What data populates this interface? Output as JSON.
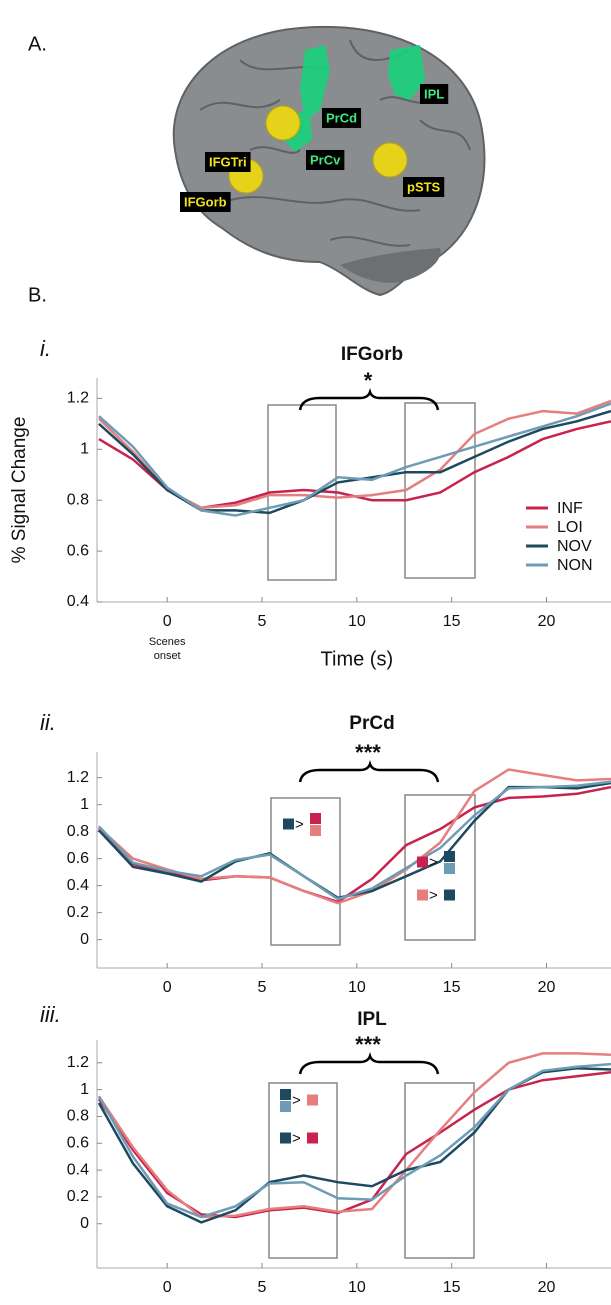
{
  "panel_labels": [
    "A.",
    "B."
  ],
  "brain_labels": [
    "IFGTri",
    "IFGorb",
    "PrCd",
    "PrCv",
    "IPL",
    "pSTS"
  ],
  "chart_data": [
    {
      "type": "line",
      "panel_label": "i.",
      "title": "IFGorb",
      "xlabel": "Time (s)",
      "ylabel": "% Signal Change",
      "x_note": [
        "Scenes",
        "onset"
      ],
      "annotation": "*",
      "legend": "right",
      "x": [
        -3.6,
        -1.8,
        0,
        1.8,
        3.6,
        5.4,
        7.2,
        9,
        10.8,
        12.6,
        14.4,
        16.2,
        18,
        19.8,
        21.6,
        23.4
      ],
      "xlim": [
        -3.7,
        23.4
      ],
      "xticks": [
        0,
        5,
        10,
        15,
        20
      ],
      "ylim": [
        0.4,
        1.28
      ],
      "yticks": [
        0.4,
        0.6,
        0.8,
        1,
        1.2
      ],
      "series": [
        {
          "name": "INF",
          "color": "#c8234f",
          "values": [
            1.04,
            0.96,
            0.84,
            0.77,
            0.79,
            0.83,
            0.84,
            0.83,
            0.8,
            0.8,
            0.83,
            0.91,
            0.97,
            1.04,
            1.08,
            1.11
          ]
        },
        {
          "name": "LOI",
          "color": "#e57f7f",
          "values": [
            1.12,
            0.99,
            0.84,
            0.77,
            0.78,
            0.82,
            0.82,
            0.81,
            0.82,
            0.84,
            0.92,
            1.06,
            1.12,
            1.15,
            1.14,
            1.19
          ]
        },
        {
          "name": "NOV",
          "color": "#1d4a5e",
          "values": [
            1.1,
            0.98,
            0.84,
            0.76,
            0.76,
            0.75,
            0.8,
            0.87,
            0.89,
            0.91,
            0.91,
            0.97,
            1.03,
            1.08,
            1.11,
            1.15
          ]
        },
        {
          "name": "NON",
          "color": "#6e9cb4",
          "values": [
            1.13,
            1.01,
            0.85,
            0.76,
            0.74,
            0.77,
            0.8,
            0.89,
            0.88,
            0.93,
            0.97,
            1.01,
            1.05,
            1.09,
            1.13,
            1.18
          ]
        }
      ]
    },
    {
      "type": "line",
      "panel_label": "ii.",
      "title": "PrCd",
      "annotation": "***",
      "comparisons": [
        {
          "left": [
            "NOV"
          ],
          "symbol": ">",
          "right": [
            "INF",
            "LOI"
          ]
        },
        {
          "left": [
            "INF"
          ],
          "symbol": ">",
          "right": [
            "NOV",
            "NON"
          ]
        },
        {
          "left": [
            "LOI"
          ],
          "symbol": ">",
          "right": [
            "NOV"
          ]
        }
      ],
      "x": [
        -3.6,
        -1.8,
        0,
        1.8,
        3.6,
        5.4,
        7.2,
        9,
        10.8,
        12.6,
        14.4,
        16.2,
        18,
        19.8,
        21.6,
        23.4
      ],
      "xlim": [
        -3.7,
        23.4
      ],
      "xticks": [
        0,
        5,
        10,
        15,
        20
      ],
      "ylim": [
        -0.21,
        1.39
      ],
      "yticks": [
        0,
        0.2,
        0.4,
        0.6,
        0.8,
        1,
        1.2
      ],
      "series": [
        {
          "name": "INF",
          "color": "#c8234f",
          "values": [
            0.82,
            0.56,
            0.5,
            0.44,
            0.47,
            0.46,
            0.36,
            0.28,
            0.45,
            0.7,
            0.82,
            0.98,
            1.05,
            1.06,
            1.08,
            1.13
          ]
        },
        {
          "name": "LOI",
          "color": "#e57f7f",
          "values": [
            0.83,
            0.6,
            0.52,
            0.45,
            0.47,
            0.46,
            0.36,
            0.27,
            0.36,
            0.52,
            0.72,
            1.1,
            1.26,
            1.22,
            1.18,
            1.19
          ]
        },
        {
          "name": "NOV",
          "color": "#1d4a5e",
          "values": [
            0.81,
            0.54,
            0.49,
            0.43,
            0.58,
            0.64,
            0.47,
            0.31,
            0.36,
            0.47,
            0.58,
            0.88,
            1.13,
            1.13,
            1.12,
            1.16
          ]
        },
        {
          "name": "NON",
          "color": "#6e9cb4",
          "values": [
            0.84,
            0.57,
            0.51,
            0.47,
            0.59,
            0.63,
            0.47,
            0.3,
            0.38,
            0.53,
            0.68,
            0.92,
            1.12,
            1.13,
            1.14,
            1.17
          ]
        }
      ]
    },
    {
      "type": "line",
      "panel_label": "iii.",
      "title": "IPL",
      "annotation": "***",
      "comparisons": [
        {
          "left": [
            "NOV",
            "NON"
          ],
          "symbol": ">",
          "right": [
            "LOI"
          ]
        },
        {
          "left": [
            "NOV"
          ],
          "symbol": ">",
          "right": [
            "INF"
          ]
        }
      ],
      "x": [
        -3.6,
        -1.8,
        0,
        1.8,
        3.6,
        5.4,
        7.2,
        9,
        10.8,
        12.6,
        14.4,
        16.2,
        18,
        19.8,
        21.6,
        23.4
      ],
      "xlim": [
        -3.7,
        23.4
      ],
      "xticks": [
        0,
        5,
        10,
        15,
        20
      ],
      "ylim": [
        -0.33,
        1.37
      ],
      "yticks": [
        0,
        0.2,
        0.4,
        0.6,
        0.8,
        1,
        1.2
      ],
      "series": [
        {
          "name": "INF",
          "color": "#c8234f",
          "values": [
            0.93,
            0.55,
            0.23,
            0.07,
            0.05,
            0.1,
            0.12,
            0.08,
            0.18,
            0.52,
            0.68,
            0.85,
            1.0,
            1.07,
            1.1,
            1.13
          ]
        },
        {
          "name": "LOI",
          "color": "#e57f7f",
          "values": [
            0.95,
            0.57,
            0.25,
            0.05,
            0.06,
            0.11,
            0.13,
            0.09,
            0.11,
            0.4,
            0.7,
            0.98,
            1.2,
            1.27,
            1.27,
            1.26
          ]
        },
        {
          "name": "NOV",
          "color": "#1d4a5e",
          "values": [
            0.9,
            0.45,
            0.13,
            0.01,
            0.1,
            0.31,
            0.36,
            0.31,
            0.28,
            0.4,
            0.46,
            0.68,
            1.0,
            1.13,
            1.16,
            1.15
          ]
        },
        {
          "name": "NON",
          "color": "#6e9cb4",
          "values": [
            0.95,
            0.5,
            0.15,
            0.05,
            0.13,
            0.3,
            0.31,
            0.19,
            0.18,
            0.36,
            0.51,
            0.72,
            1.0,
            1.14,
            1.17,
            1.19
          ]
        }
      ]
    }
  ]
}
